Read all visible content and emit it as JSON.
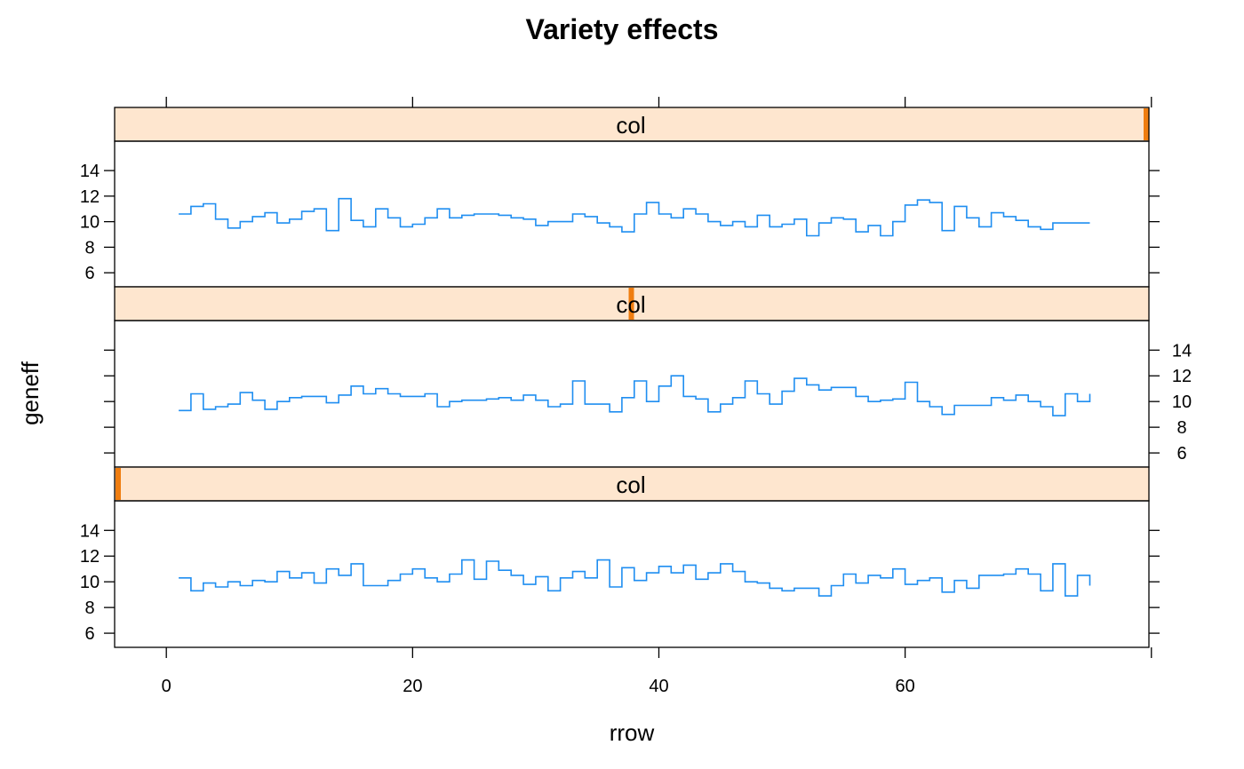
{
  "chart_data": {
    "type": "line",
    "step": true,
    "title": "Variety effects",
    "xlabel": "rrow",
    "ylabel": "geneff",
    "xlim": [
      -4.2,
      79.8
    ],
    "ylim": [
      4.9,
      16.3
    ],
    "x_ticks": [
      0,
      20,
      40,
      60
    ],
    "y_ticks": [
      6,
      8,
      10,
      12,
      14
    ],
    "grid": false,
    "line_color": "#1f8ef1",
    "strip_color": "#fee6cf",
    "strip_indicator_color": "#ef7d10",
    "panels": [
      {
        "strip_label": "col",
        "strip_level": 3,
        "x": [
          1,
          2,
          3,
          4,
          5,
          6,
          7,
          8,
          9,
          10,
          11,
          12,
          13,
          14,
          15,
          16,
          17,
          18,
          19,
          20,
          21,
          22,
          23,
          24,
          25,
          26,
          27,
          28,
          29,
          30,
          31,
          32,
          33,
          34,
          35,
          36,
          37,
          38,
          39,
          40,
          41,
          42,
          43,
          44,
          45,
          46,
          47,
          48,
          49,
          50,
          51,
          52,
          53,
          54,
          55,
          56,
          57,
          58,
          59,
          60,
          61,
          62,
          63,
          64,
          65,
          66,
          67,
          68,
          69,
          70,
          71,
          72,
          73,
          74,
          75
        ],
        "values": [
          10.6,
          11.2,
          11.4,
          10.2,
          9.5,
          10.0,
          10.4,
          10.7,
          9.9,
          10.2,
          10.8,
          11.0,
          9.3,
          11.8,
          10.1,
          9.6,
          11.0,
          10.3,
          9.6,
          9.8,
          10.3,
          11.0,
          10.3,
          10.5,
          10.6,
          10.6,
          10.5,
          10.3,
          10.2,
          9.7,
          10.0,
          10.0,
          10.6,
          10.4,
          9.9,
          9.6,
          9.2,
          10.6,
          11.5,
          10.6,
          10.3,
          11.0,
          10.6,
          10.0,
          9.7,
          10.0,
          9.6,
          10.5,
          9.6,
          9.8,
          10.2,
          8.9,
          9.9,
          10.3,
          10.2,
          9.2,
          9.7,
          8.9,
          10.0,
          11.3,
          11.7,
          11.5,
          9.3,
          11.2,
          10.3,
          9.6,
          10.7,
          10.4,
          10.1,
          9.6,
          9.4,
          9.9,
          9.9,
          9.9,
          9.9
        ]
      },
      {
        "strip_label": "col",
        "strip_level": 2,
        "x": [
          1,
          2,
          3,
          4,
          5,
          6,
          7,
          8,
          9,
          10,
          11,
          12,
          13,
          14,
          15,
          16,
          17,
          18,
          19,
          20,
          21,
          22,
          23,
          24,
          25,
          26,
          27,
          28,
          29,
          30,
          31,
          32,
          33,
          34,
          35,
          36,
          37,
          38,
          39,
          40,
          41,
          42,
          43,
          44,
          45,
          46,
          47,
          48,
          49,
          50,
          51,
          52,
          53,
          54,
          55,
          56,
          57,
          58,
          59,
          60,
          61,
          62,
          63,
          64,
          65,
          66,
          67,
          68,
          69,
          70,
          71,
          72,
          73,
          74,
          75
        ],
        "values": [
          9.3,
          10.6,
          9.4,
          9.6,
          9.8,
          10.7,
          10.1,
          9.4,
          10.0,
          10.3,
          10.4,
          10.4,
          9.9,
          10.5,
          11.2,
          10.6,
          11.0,
          10.6,
          10.4,
          10.4,
          10.6,
          9.6,
          10.0,
          10.1,
          10.1,
          10.2,
          10.3,
          10.1,
          10.5,
          10.1,
          9.6,
          9.8,
          11.6,
          9.8,
          9.8,
          9.2,
          10.3,
          11.6,
          10.0,
          11.2,
          12.0,
          10.4,
          10.2,
          9.2,
          9.8,
          10.3,
          11.6,
          10.6,
          9.8,
          10.8,
          11.8,
          11.3,
          10.9,
          11.1,
          11.1,
          10.4,
          10.0,
          10.1,
          10.2,
          11.5,
          10.0,
          9.6,
          9.0,
          9.7,
          9.7,
          9.7,
          10.3,
          10.1,
          10.5,
          10.0,
          9.6,
          8.9,
          10.6,
          10.0,
          10.6
        ]
      },
      {
        "strip_label": "col",
        "strip_level": 1,
        "x": [
          1,
          2,
          3,
          4,
          5,
          6,
          7,
          8,
          9,
          10,
          11,
          12,
          13,
          14,
          15,
          16,
          17,
          18,
          19,
          20,
          21,
          22,
          23,
          24,
          25,
          26,
          27,
          28,
          29,
          30,
          31,
          32,
          33,
          34,
          35,
          36,
          37,
          38,
          39,
          40,
          41,
          42,
          43,
          44,
          45,
          46,
          47,
          48,
          49,
          50,
          51,
          52,
          53,
          54,
          55,
          56,
          57,
          58,
          59,
          60,
          61,
          62,
          63,
          64,
          65,
          66,
          67,
          68,
          69,
          70,
          71,
          72,
          73,
          74,
          75
        ],
        "values": [
          10.3,
          9.3,
          9.9,
          9.6,
          10.0,
          9.7,
          10.1,
          10.0,
          10.8,
          10.3,
          10.7,
          9.9,
          11.0,
          10.5,
          11.4,
          9.7,
          9.7,
          10.1,
          10.6,
          11.0,
          10.3,
          10.0,
          10.6,
          11.7,
          10.2,
          11.6,
          10.9,
          10.5,
          9.8,
          10.4,
          9.3,
          10.3,
          10.8,
          10.3,
          11.7,
          9.6,
          11.1,
          10.1,
          10.7,
          11.2,
          10.7,
          11.3,
          10.2,
          10.7,
          11.4,
          10.8,
          10.0,
          9.9,
          9.5,
          9.3,
          9.5,
          9.5,
          8.9,
          9.7,
          10.6,
          9.9,
          10.5,
          10.3,
          11.0,
          9.8,
          10.1,
          10.3,
          9.2,
          10.1,
          9.5,
          10.5,
          10.5,
          10.6,
          11.0,
          10.6,
          9.3,
          11.4,
          8.9,
          10.5,
          9.7
        ]
      }
    ]
  }
}
